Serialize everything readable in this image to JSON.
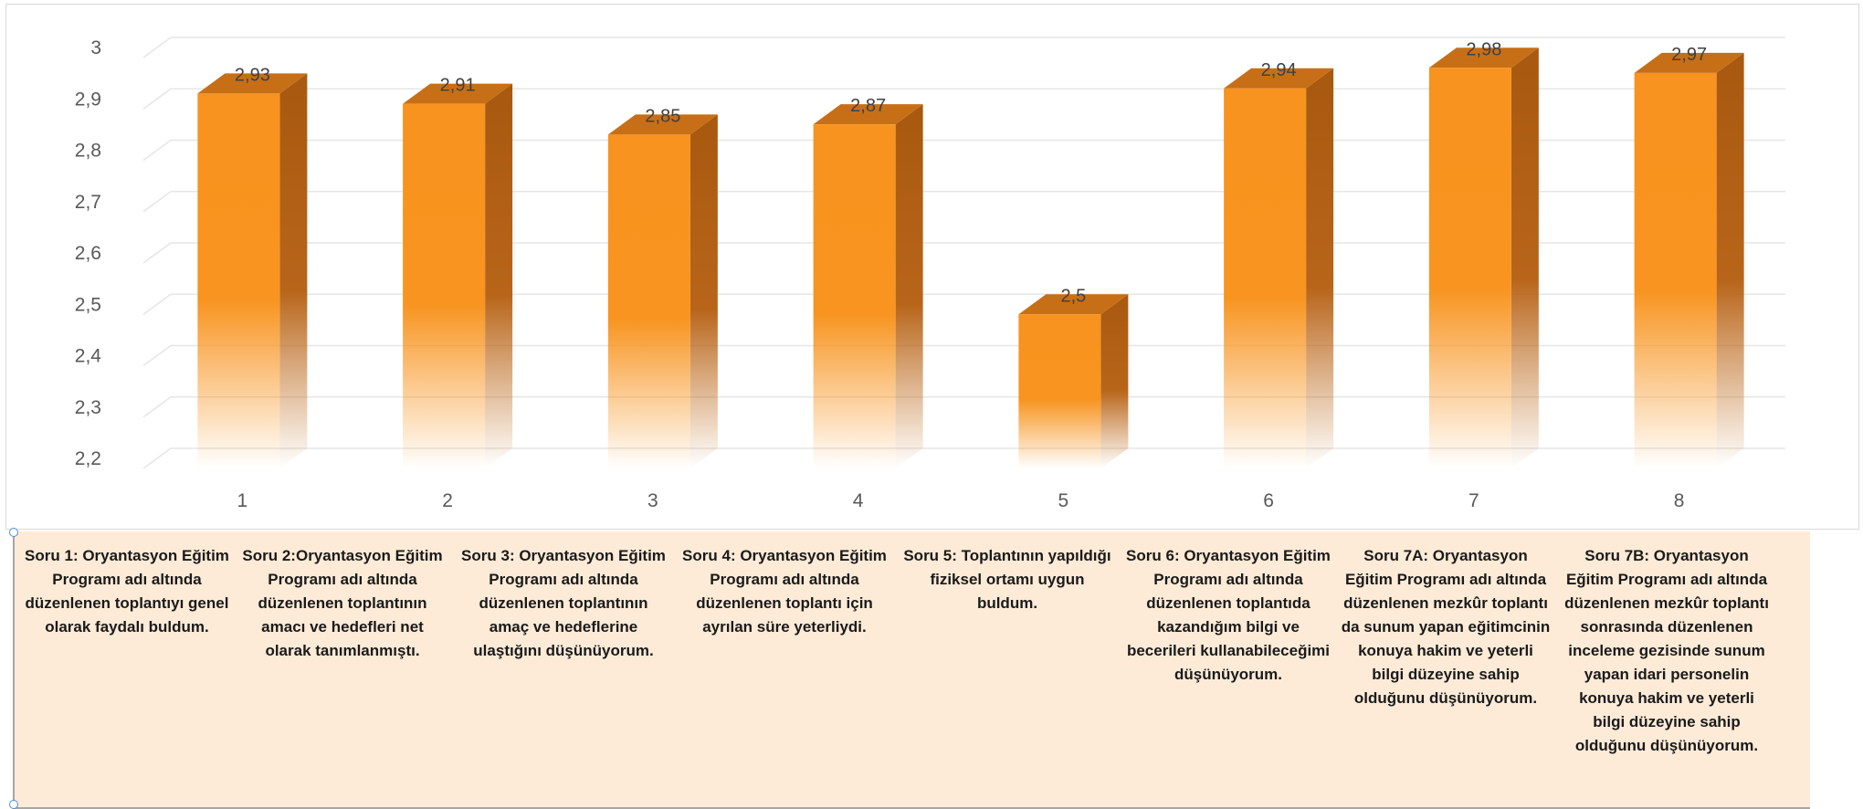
{
  "chart_data": {
    "type": "bar",
    "categories": [
      "1",
      "2",
      "3",
      "4",
      "5",
      "6",
      "7",
      "8"
    ],
    "values": [
      2.93,
      2.91,
      2.85,
      2.87,
      2.5,
      2.94,
      2.98,
      2.97
    ],
    "data_labels": [
      "2,93",
      "2,91",
      "2,85",
      "2,87",
      "2,5",
      "2,94",
      "2,98",
      "2,97"
    ],
    "y_ticks": [
      "2,2",
      "2,3",
      "2,4",
      "2,5",
      "2,6",
      "2,7",
      "2,8",
      "2,9",
      "3"
    ],
    "ylim": [
      2.2,
      3
    ],
    "grid": true,
    "bar_color": "#f7931e",
    "title": "",
    "xlabel": "",
    "ylabel": ""
  },
  "notes": [
    "Soru 1: Oryantasyon Eğitim Programı adı altında düzenlenen toplantıyı genel olarak faydalı buldum.",
    "Soru 2:Oryantasyon Eğitim Programı adı altında düzenlenen toplantının amacı ve hedefleri net olarak tanımlanmıştı.",
    "Soru 3: Oryantasyon Eğitim Programı adı altında düzenlenen toplantının amaç ve hedeflerine ulaştığını düşünüyorum.",
    "Soru 4: Oryantasyon Eğitim Programı adı altında düzenlenen toplantı için ayrılan süre yeterliydi.",
    "Soru 5: Toplantının yapıldığı fiziksel ortamı uygun buldum.",
    "Soru 6: Oryantasyon Eğitim Programı adı altında düzenlenen toplantıda kazandığım bilgi ve becerileri kullanabileceğimi düşünüyorum.",
    "Soru 7A: Oryantasyon Eğitim Programı adı altında düzenlenen mezkûr toplantı da sunum yapan eğitimcinin konuya hakim ve yeterli bilgi düzeyine sahip olduğunu düşünüyorum.",
    "Soru 7B: Oryantasyon Eğitim Programı adı altında düzenlenen mezkûr toplantı sonrasında düzenlenen inceleme gezisinde sunum yapan idari personelin konuya hakim ve yeterli bilgi düzeyine sahip olduğunu düşünüyorum."
  ]
}
